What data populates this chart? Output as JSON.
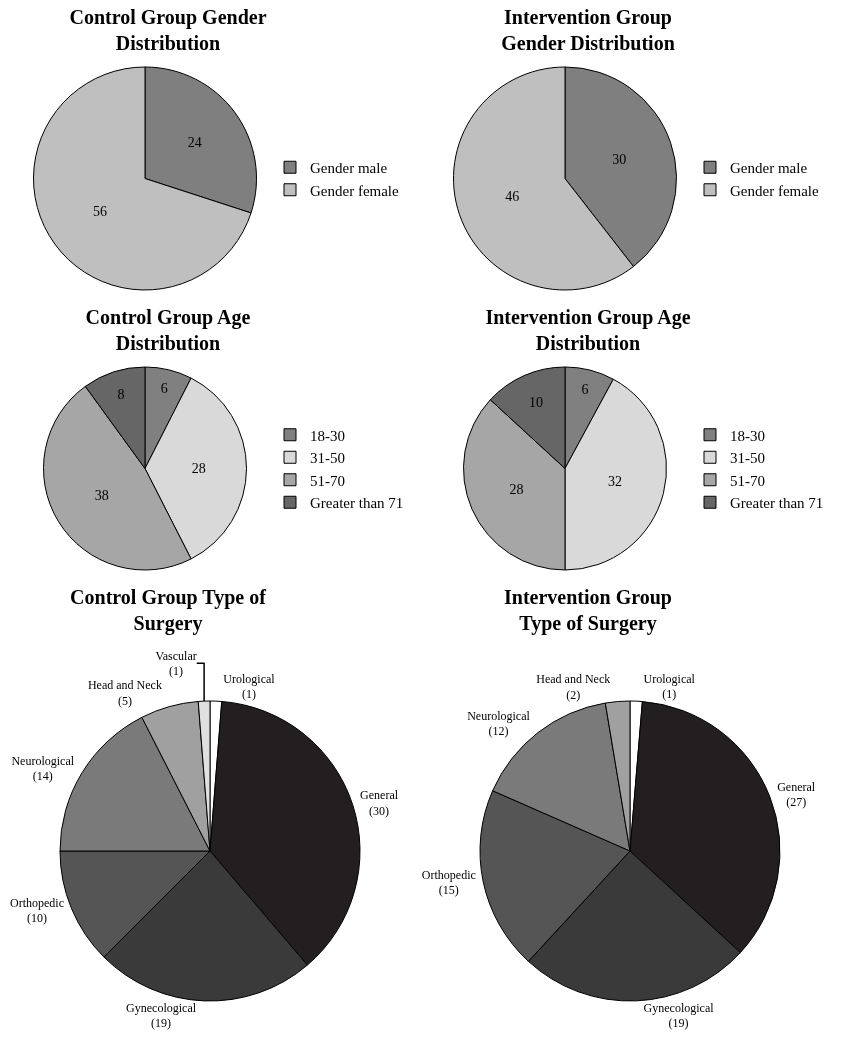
{
  "chart_data": [
    {
      "type": "pie",
      "title": "Control Group Gender Distribution",
      "categories": [
        "Gender male",
        "Gender female"
      ],
      "values": [
        24,
        56
      ],
      "colors": [
        "#7f7f7f",
        "#bfbfbf"
      ],
      "data_labels": true,
      "legend": "right"
    },
    {
      "type": "pie",
      "title": "Intervention Group Gender Distribution",
      "categories": [
        "Gender male",
        "Gender female"
      ],
      "values": [
        30,
        46
      ],
      "colors": [
        "#7f7f7f",
        "#bfbfbf"
      ],
      "data_labels": true,
      "legend": "right"
    },
    {
      "type": "pie",
      "title": "Control Group Age Distribution",
      "categories": [
        "18-30",
        "31-50",
        "51-70",
        "Greater than 71"
      ],
      "values": [
        6,
        28,
        38,
        8
      ],
      "colors": [
        "#808080",
        "#d9d9d9",
        "#a6a6a6",
        "#666666"
      ],
      "data_labels": true,
      "legend": "right"
    },
    {
      "type": "pie",
      "title": "Intervention Group Age Distribution",
      "categories": [
        "18-30",
        "31-50",
        "51-70",
        "Greater than 71"
      ],
      "values": [
        6,
        32,
        28,
        10
      ],
      "colors": [
        "#808080",
        "#d9d9d9",
        "#a6a6a6",
        "#666666"
      ],
      "data_labels": true,
      "legend": "right"
    },
    {
      "type": "pie",
      "title": "Control Group Type of Surgery",
      "categories": [
        "Urological",
        "General",
        "Gynecological",
        "Orthopedic",
        "Neurological",
        "Head and Neck",
        "Vascular"
      ],
      "values": [
        1,
        30,
        19,
        10,
        14,
        5,
        1
      ],
      "colors": [
        "#ffffff",
        "#231f20",
        "#3a3a3a",
        "#555555",
        "#7a7a7a",
        "#a0a0a0",
        "#e0e0e0"
      ],
      "value_labels": [
        "(1)",
        "(30)",
        "(19)",
        "(10)",
        "(14)",
        "(5)",
        "(1)"
      ],
      "legend": false
    },
    {
      "type": "pie",
      "title": "Intervention Group Type of Surgery",
      "categories": [
        "Urological",
        "General",
        "Gynecological",
        "Orthopedic",
        "Neurological",
        "Head and Neck"
      ],
      "values": [
        1,
        27,
        19,
        15,
        12,
        2
      ],
      "colors": [
        "#ffffff",
        "#231f20",
        "#3a3a3a",
        "#555555",
        "#7a7a7a",
        "#a0a0a0"
      ],
      "value_labels": [
        "(1)",
        "(27)",
        "(19)",
        "(15)",
        "(12)",
        "(2)"
      ],
      "legend": false
    }
  ]
}
